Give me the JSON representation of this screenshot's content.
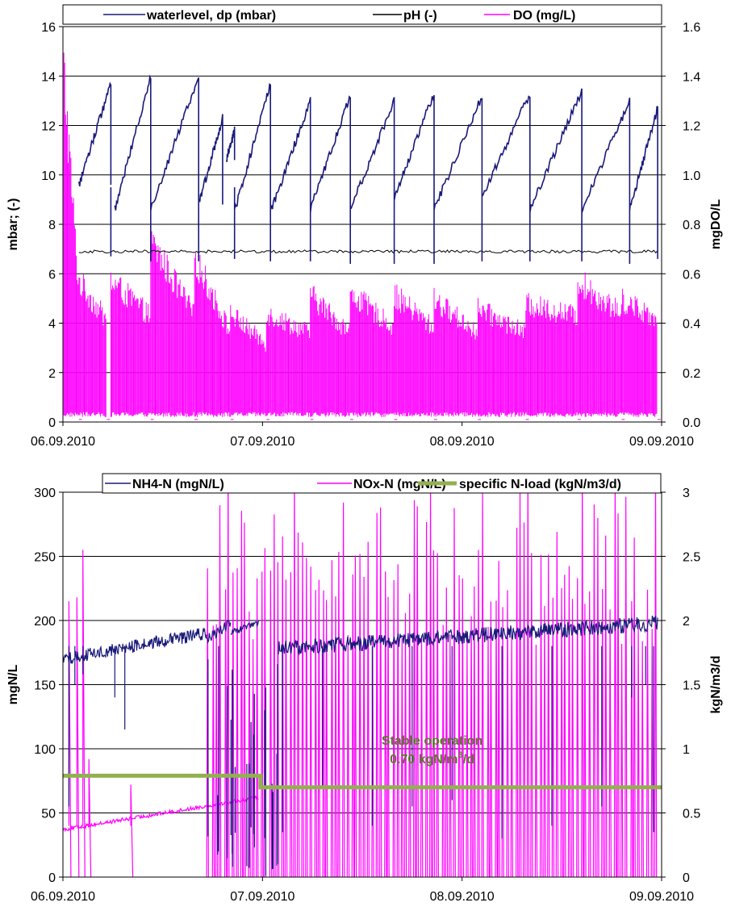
{
  "chart_data": [
    {
      "type": "line",
      "legend_position": "top",
      "grid": true,
      "x_start": "06.09.2010",
      "x_tick_labels": [
        "06.09.2010",
        "07.09.2010",
        "08.09.2010",
        "09.09.2010"
      ],
      "xlim": [
        0,
        3
      ],
      "ylabel": "mbar; (-)",
      "ylim": [
        0,
        16
      ],
      "y_ticks": [
        0,
        2,
        4,
        6,
        8,
        10,
        12,
        14,
        16
      ],
      "y2label": "mgDO/L",
      "y2lim": [
        0,
        1.6
      ],
      "y2_ticks": [
        "0.0",
        "0.2",
        "0.4",
        "0.6",
        "0.8",
        "1.0",
        "1.2",
        "1.4",
        "1.6"
      ],
      "series": [
        {
          "name": "waterlevel, dp (mbar)",
          "axis": "left",
          "color": "#1a1a7a",
          "kind": "sawtooth",
          "cycles": [
            [
              0.08,
              0.24,
              9.6,
              13.7
            ],
            [
              0.26,
              0.44,
              8.6,
              14.0
            ],
            [
              0.44,
              0.68,
              8.6,
              14.0
            ],
            [
              0.68,
              0.8,
              8.8,
              12.3
            ],
            [
              0.82,
              0.86,
              10.6,
              11.8
            ],
            [
              0.86,
              1.04,
              8.5,
              13.7
            ],
            [
              1.04,
              1.24,
              8.5,
              13.0
            ],
            [
              1.24,
              1.44,
              8.6,
              13.2
            ],
            [
              1.44,
              1.66,
              8.6,
              13.0
            ],
            [
              1.66,
              1.86,
              9.1,
              13.3
            ],
            [
              1.86,
              2.1,
              8.6,
              13.2
            ],
            [
              2.1,
              2.34,
              9.1,
              13.3
            ],
            [
              2.34,
              2.6,
              8.6,
              13.4
            ],
            [
              2.6,
              2.84,
              8.6,
              13.0
            ],
            [
              2.84,
              2.98,
              8.6,
              12.7
            ]
          ],
          "sharp_drops": [
            [
              0.24,
              6.7
            ],
            [
              0.44,
              6.5
            ],
            [
              0.68,
              6.5
            ],
            [
              0.86,
              6.6
            ],
            [
              1.04,
              6.5
            ],
            [
              1.24,
              6.5
            ],
            [
              1.44,
              6.4
            ],
            [
              1.66,
              6.4
            ],
            [
              1.86,
              6.4
            ],
            [
              2.1,
              6.5
            ],
            [
              2.34,
              6.5
            ],
            [
              2.6,
              6.5
            ],
            [
              2.84,
              6.4
            ],
            [
              2.98,
              6.6
            ]
          ]
        },
        {
          "name": "pH (-)",
          "axis": "left",
          "color": "#000000",
          "kind": "flat",
          "x_range": [
            0.08,
            2.98
          ],
          "level": 6.9
        },
        {
          "name": "DO (mg/L)",
          "axis": "right",
          "color": "#ff00ff",
          "kind": "oscillating",
          "blocks": [
            [
              0.0,
              0.08,
              1.55,
              0.55
            ],
            [
              0.08,
              0.22,
              0.6,
              0.43
            ],
            [
              0.24,
              0.44,
              0.6,
              0.45
            ],
            [
              0.44,
              0.66,
              0.77,
              0.45
            ],
            [
              0.66,
              0.84,
              0.7,
              0.38
            ],
            [
              0.84,
              1.02,
              0.46,
              0.33
            ],
            [
              1.02,
              1.24,
              0.46,
              0.38
            ],
            [
              1.24,
              1.44,
              0.54,
              0.38
            ],
            [
              1.44,
              1.66,
              0.55,
              0.4
            ],
            [
              1.66,
              1.86,
              0.54,
              0.4
            ],
            [
              1.86,
              2.08,
              0.52,
              0.38
            ],
            [
              2.08,
              2.32,
              0.48,
              0.38
            ],
            [
              2.32,
              2.58,
              0.5,
              0.45
            ],
            [
              2.58,
              2.8,
              0.6,
              0.46
            ],
            [
              2.8,
              2.98,
              0.52,
              0.44
            ]
          ]
        }
      ]
    },
    {
      "type": "line",
      "legend_position": "top",
      "grid": true,
      "x_start": "06.09.2010",
      "x_tick_labels": [
        "06.09.2010",
        "07.09.2010",
        "08.09.2010",
        "09.09.2010"
      ],
      "xlim": [
        0,
        3
      ],
      "ylabel": "mgN/L",
      "ylim": [
        0,
        300
      ],
      "y_ticks": [
        0,
        50,
        100,
        150,
        200,
        250,
        300
      ],
      "y2label": "kgN/m3/d",
      "y2lim": [
        0,
        3
      ],
      "y2_ticks": [
        "0",
        "0.5",
        "1",
        "1.5",
        "2",
        "2.5",
        "3"
      ],
      "annotation": {
        "line1": "Stable operation",
        "line2_prefix": "0.70 kgN/m",
        "line2_sup": "3",
        "line2_suffix": "/d",
        "x": 1.85,
        "y": 103,
        "color": "#5a7a2a"
      },
      "series": [
        {
          "name": "NH4-N (mgN/L)",
          "axis": "left",
          "color": "#1a1a7a",
          "kind": "noisy_segments",
          "segments": [
            [
              0.0,
              0.72,
              170,
              190,
              5
            ],
            [
              0.72,
              0.84,
              185,
              198,
              4
            ],
            [
              0.84,
              0.98,
              190,
              198,
              3
            ],
            [
              1.08,
              2.98,
              178,
              198,
              6
            ]
          ],
          "dips": [
            [
              0.03,
              55
            ],
            [
              0.06,
              150
            ],
            [
              0.1,
              158
            ],
            [
              0.26,
              140
            ],
            [
              0.31,
              115
            ],
            [
              0.78,
              20
            ],
            [
              1.1,
              35
            ],
            [
              1.3,
              70
            ],
            [
              1.55,
              40
            ],
            [
              1.75,
              55
            ],
            [
              1.95,
              60
            ],
            [
              2.2,
              30
            ],
            [
              2.45,
              40
            ],
            [
              2.7,
              55
            ],
            [
              2.85,
              140
            ],
            [
              2.92,
              150
            ],
            [
              2.96,
              35
            ]
          ],
          "low_band": [
            0.72,
            1.08,
            60
          ]
        },
        {
          "name": "NOx-N (mgN/L)",
          "axis": "left",
          "color": "#ff00ff",
          "kind": "ramp_then_spikes",
          "ramp": [
            [
              0.0,
              37
            ],
            [
              0.98,
              62
            ]
          ],
          "early_spikes": [
            [
              0.03,
              215
            ],
            [
              0.07,
              218
            ],
            [
              0.1,
              255
            ],
            [
              0.13,
              92
            ],
            [
              0.34,
              72
            ]
          ],
          "spike_region": [
            0.72,
            2.98
          ],
          "base_after": 70
        },
        {
          "name": "specific N-load (kgN/m3/d)",
          "axis": "right",
          "color": "#92b050",
          "kind": "step",
          "points": [
            [
              0.0,
              0.79
            ],
            [
              0.99,
              0.79
            ],
            [
              0.99,
              0.7
            ],
            [
              3.0,
              0.7
            ]
          ]
        }
      ]
    }
  ]
}
